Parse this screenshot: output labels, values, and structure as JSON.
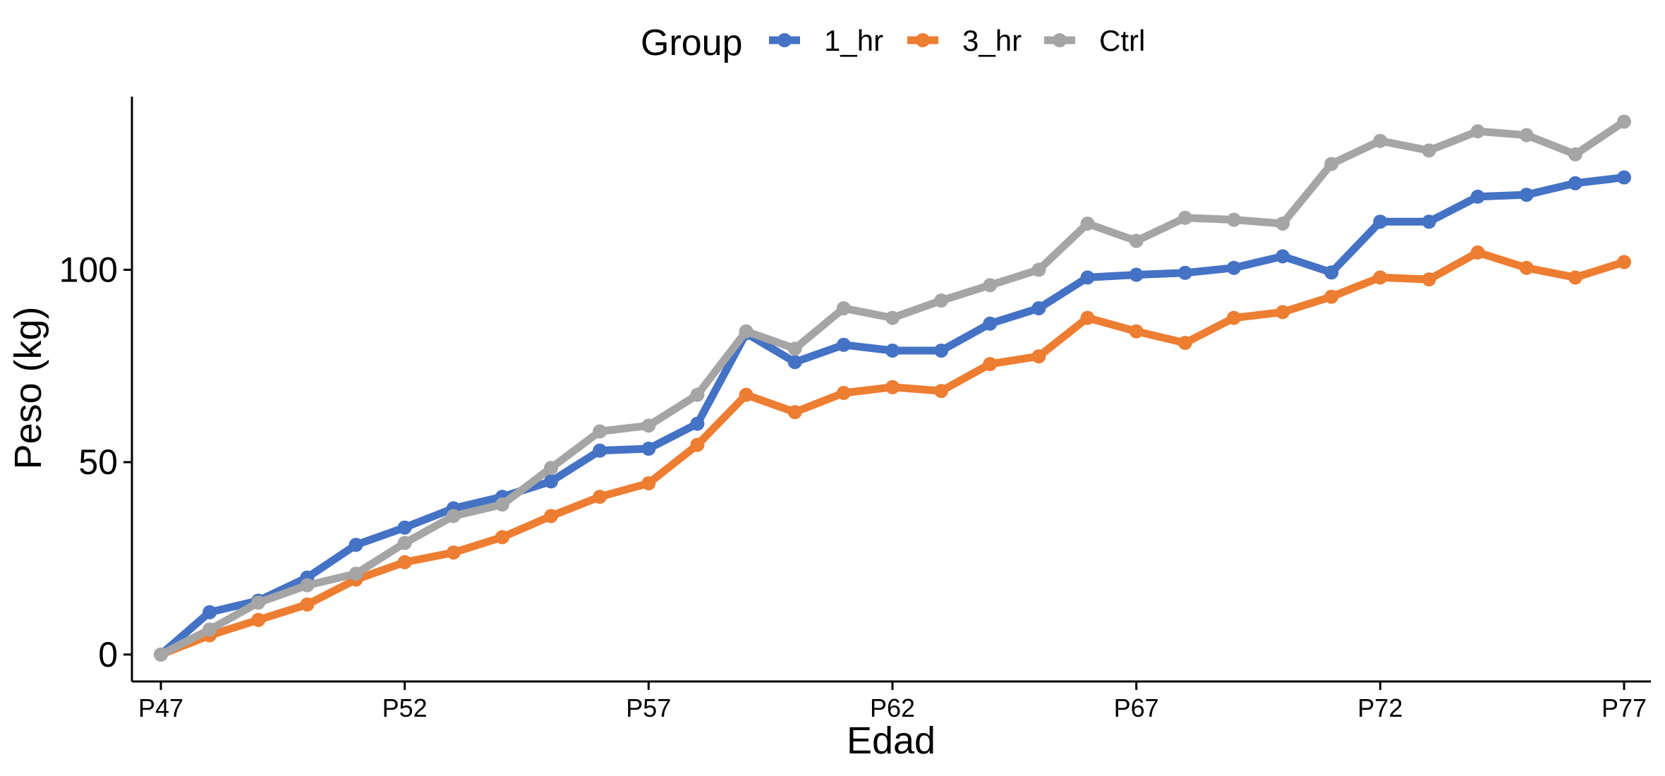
{
  "chart_data": {
    "type": "line",
    "xlabel": "Edad",
    "ylabel": "Peso (kg)",
    "x_categories": [
      "P47",
      "P48",
      "P49",
      "P50",
      "P51",
      "P52",
      "P53",
      "P54",
      "P55",
      "P56",
      "P57",
      "P58",
      "P59",
      "P60",
      "P61",
      "P62",
      "P63",
      "P64",
      "P65",
      "P66",
      "P67",
      "P68",
      "P69",
      "P70",
      "P71",
      "P72",
      "P73",
      "P74",
      "P75",
      "P76",
      "P77"
    ],
    "x_tick_labels": [
      "P47",
      "P52",
      "P57",
      "P62",
      "P67",
      "P72",
      "P77"
    ],
    "y_ticks": [
      0,
      50,
      100
    ],
    "ylim": [
      -7,
      145
    ],
    "grid": false,
    "legend": {
      "title": "Group",
      "placement": "top"
    },
    "series": [
      {
        "name": "1_hr",
        "color": "#4472C4",
        "values": [
          0,
          11,
          14,
          20,
          28.5,
          33,
          38,
          41,
          45,
          53,
          53.5,
          60,
          83.5,
          76,
          80.5,
          79,
          79,
          86,
          90,
          98,
          98.7,
          99.2,
          100.5,
          103.5,
          99.3,
          112.5,
          112.5,
          119,
          119.5,
          122.5,
          124
        ]
      },
      {
        "name": "3_hr",
        "color": "#ED7D31",
        "values": [
          0,
          5,
          9,
          13,
          19.5,
          24,
          26.5,
          30.5,
          36,
          41,
          44.5,
          54.5,
          67.5,
          63,
          68,
          69.5,
          68.5,
          75.5,
          77.5,
          87.5,
          84,
          81,
          87.5,
          89,
          93,
          98,
          97.5,
          104.5,
          100.5,
          98,
          102
        ]
      },
      {
        "name": "Ctrl",
        "color": "#A5A5A5",
        "values": [
          0,
          6.5,
          13.5,
          18,
          21,
          29,
          36,
          39,
          48.5,
          58,
          59.5,
          67.5,
          84,
          79.5,
          90,
          87.5,
          92,
          96,
          100,
          112,
          107.5,
          113.5,
          113,
          112,
          127.5,
          133.5,
          131,
          136,
          135,
          130,
          138.5
        ]
      }
    ]
  }
}
